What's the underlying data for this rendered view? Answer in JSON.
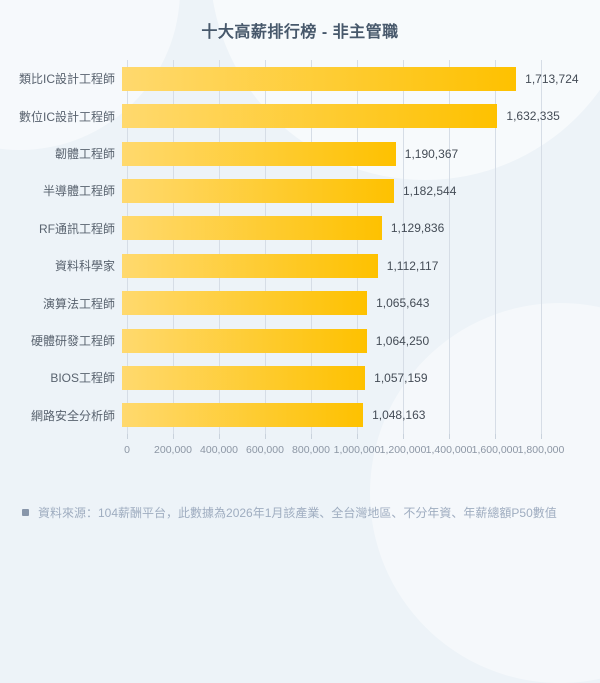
{
  "title": "十大高薪排行榜 - 非主管職",
  "chart_data": {
    "type": "bar",
    "orientation": "horizontal",
    "title": "十大高薪排行榜 - 非主管職",
    "categories": [
      "類比IC設計工程師",
      "數位IC設計工程師",
      "韌體工程師",
      "半導體工程師",
      "RF通訊工程師",
      "資料科學家",
      "演算法工程師",
      "硬體研發工程師",
      "BIOS工程師",
      "網路安全分析師"
    ],
    "values": [
      1713724,
      1632335,
      1190367,
      1182544,
      1129836,
      1112117,
      1065643,
      1064250,
      1057159,
      1048163
    ],
    "value_labels": [
      "1,713,724",
      "1,632,335",
      "1,190,367",
      "1,182,544",
      "1,129,836",
      "1,112,117",
      "1,065,643",
      "1,064,250",
      "1,057,159",
      "1,048,163"
    ],
    "xlim": [
      0,
      1800000
    ],
    "x_ticks": [
      0,
      200000,
      400000,
      600000,
      800000,
      1000000,
      1200000,
      1400000,
      1600000,
      1800000
    ],
    "x_tick_labels": [
      "0",
      "200,000",
      "400,000",
      "600,000",
      "800,000",
      "1,000,000",
      "1,200,000",
      "1,400,000",
      "1,600,000",
      "1,800,000"
    ],
    "grid": true,
    "legend": "none",
    "bar_gradient": [
      "#ffd96e",
      "#fec100"
    ]
  },
  "footer": {
    "source_note": "資料來源：104薪酬平台，此數據為2026年1月該產業、全台灣地區、不分年資、年薪總額P50數值"
  },
  "colors": {
    "background": "#edf3f8",
    "title_text": "#47586b",
    "category_text": "#59636f",
    "value_text": "#444c56",
    "tick_text": "#8c96a4",
    "gridline": "#d6dde6",
    "footer_text": "#9fadc0",
    "bar_start": "#ffd96e",
    "bar_end": "#fec100"
  }
}
